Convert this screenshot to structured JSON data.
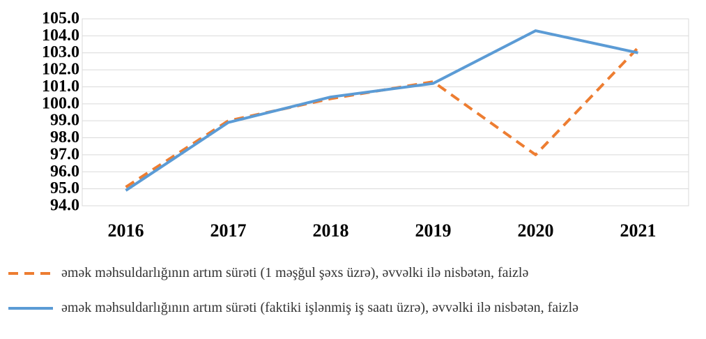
{
  "chart_data": {
    "type": "line",
    "categories": [
      "2016",
      "2017",
      "2018",
      "2019",
      "2020",
      "2021"
    ],
    "series": [
      {
        "name": "əmək məhsuldarlığının artım sürəti (1 məşğul şəxs üzrə), əvvəlki ilə nisbətən, faizlə",
        "color": "#ed7d31",
        "dash": true,
        "values": [
          95.1,
          99.0,
          100.3,
          101.3,
          97.0,
          103.3
        ]
      },
      {
        "name": "əmək məhsuldarlığının artım sürəti (faktiki işlənmiş iş saatı üzrə), əvvəlki ilə nisbətən, faizlə",
        "color": "#5b9bd5",
        "dash": false,
        "values": [
          94.9,
          98.9,
          100.4,
          101.2,
          104.3,
          103.0
        ]
      }
    ],
    "ylim": [
      94,
      105
    ],
    "yticks": [
      {
        "value": 94,
        "label": "94.0"
      },
      {
        "value": 95,
        "label": "95.0"
      },
      {
        "value": 96,
        "label": "96.0"
      },
      {
        "value": 97,
        "label": "97.0"
      },
      {
        "value": 98,
        "label": "98.0"
      },
      {
        "value": 99,
        "label": "99.0"
      },
      {
        "value": 100,
        "label": "100.0"
      },
      {
        "value": 101,
        "label": "101.0"
      },
      {
        "value": 102,
        "label": "102.0"
      },
      {
        "value": 103,
        "label": "103.0"
      },
      {
        "value": 104,
        "label": "104.0"
      },
      {
        "value": 105,
        "label": "105.0"
      }
    ],
    "grid": true,
    "legend": "bottom"
  }
}
